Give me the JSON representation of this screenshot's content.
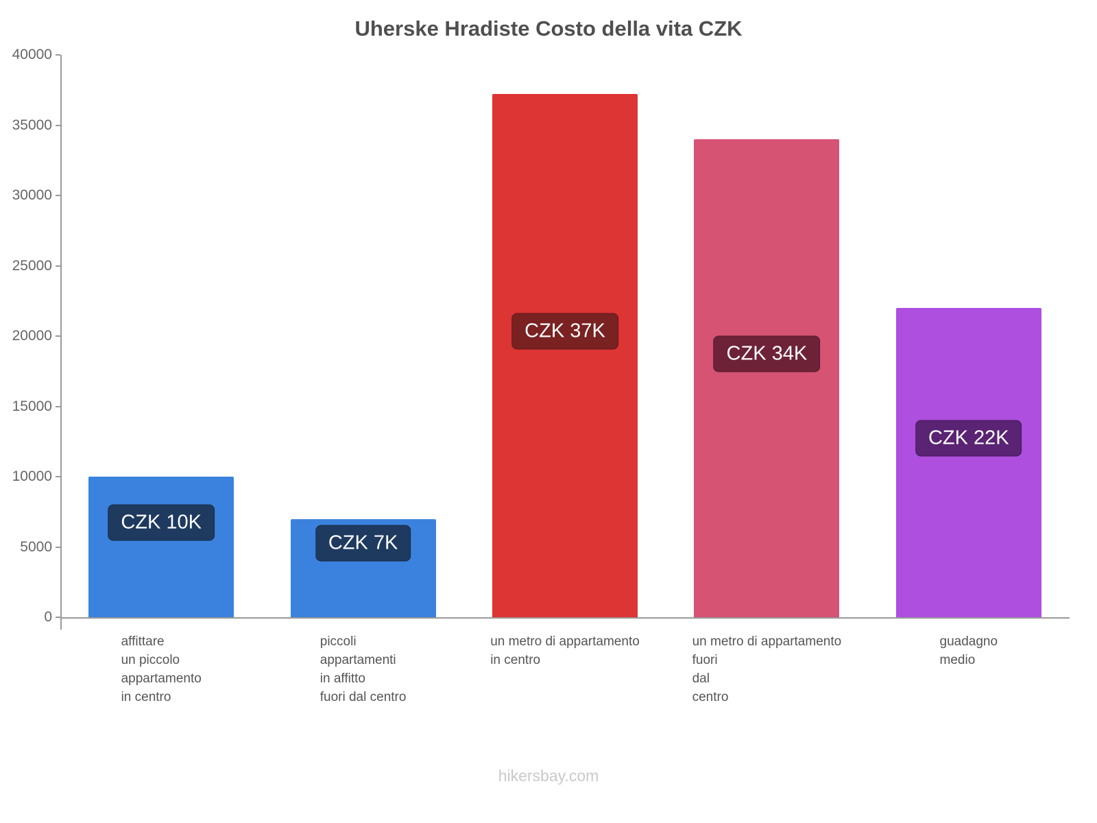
{
  "title": "Uherske Hradiste Costo della vita CZK",
  "footer": "hikersbay.com",
  "chart_data": {
    "type": "bar",
    "title": "Uherske Hradiste Costo della vita CZK",
    "xlabel": "",
    "ylabel": "",
    "ylim": [
      0,
      40000
    ],
    "yticks": [
      0,
      5000,
      10000,
      15000,
      20000,
      25000,
      30000,
      35000,
      40000
    ],
    "grid": false,
    "legend": false,
    "categories": [
      "affittare un piccolo appartamento in centro",
      "piccoli appartamenti in affitto fuori dal centro",
      "un metro di appartamento in centro",
      "un metro di appartamento fuori dal centro",
      "guadagno medio"
    ],
    "category_lines": [
      [
        "affittare",
        "un piccolo",
        "appartamento",
        "in centro"
      ],
      [
        "piccoli",
        "appartamenti",
        "in affitto",
        "fuori dal centro"
      ],
      [
        "un metro di appartamento",
        "in centro"
      ],
      [
        "un metro di appartamento",
        "fuori",
        "dal",
        "centro"
      ],
      [
        "guadagno",
        "medio"
      ]
    ],
    "values": [
      10000,
      7000,
      37200,
      34000,
      22000
    ],
    "value_labels": [
      "CZK 10K",
      "CZK 7K",
      "CZK 37K",
      "CZK 34K",
      "CZK 22K"
    ],
    "bar_colors": [
      "#3b82de",
      "#3b82de",
      "#dd3434",
      "#d65374",
      "#ae4fe0"
    ],
    "value_label_bg_colors": [
      "#1e3a5f",
      "#1e3a5f",
      "#7a2121",
      "#6e2238",
      "#5a2373"
    ],
    "axis_color": "#9a9a9a",
    "tick_label_color": "#666666"
  }
}
